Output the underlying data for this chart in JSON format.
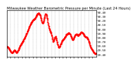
{
  "title": "Milwaukee Weather Barometric Pressure per Minute (Last 24 Hours)",
  "line_color": "#ff0000",
  "line_style": "--",
  "line_width": 0.6,
  "marker": ".",
  "marker_size": 1.2,
  "bg_color": "#ffffff",
  "plot_bg_color": "#ffffff",
  "grid_color": "#999999",
  "grid_style": "--",
  "grid_alpha": 0.8,
  "ylim": [
    29.35,
    30.45
  ],
  "ytick_values": [
    29.4,
    29.5,
    29.6,
    29.7,
    29.8,
    29.9,
    30.0,
    30.1,
    30.2,
    30.3,
    30.4
  ],
  "num_points": 1440,
  "title_fontsize": 3.8,
  "tick_fontsize": 3.0,
  "spine_color": "#000000",
  "control_points": [
    [
      0.0,
      29.58
    ],
    [
      0.03,
      29.52
    ],
    [
      0.06,
      29.45
    ],
    [
      0.09,
      29.5
    ],
    [
      0.11,
      29.45
    ],
    [
      0.13,
      29.52
    ],
    [
      0.16,
      29.65
    ],
    [
      0.2,
      29.8
    ],
    [
      0.24,
      30.0
    ],
    [
      0.28,
      30.18
    ],
    [
      0.32,
      30.28
    ],
    [
      0.36,
      30.38
    ],
    [
      0.38,
      30.28
    ],
    [
      0.4,
      30.15
    ],
    [
      0.42,
      30.26
    ],
    [
      0.44,
      30.36
    ],
    [
      0.46,
      30.16
    ],
    [
      0.48,
      29.98
    ],
    [
      0.5,
      29.88
    ],
    [
      0.52,
      29.72
    ],
    [
      0.54,
      29.82
    ],
    [
      0.56,
      29.72
    ],
    [
      0.58,
      29.58
    ],
    [
      0.61,
      29.68
    ],
    [
      0.64,
      29.78
    ],
    [
      0.67,
      29.88
    ],
    [
      0.7,
      29.9
    ],
    [
      0.72,
      29.83
    ],
    [
      0.74,
      29.76
    ],
    [
      0.76,
      29.84
    ],
    [
      0.78,
      29.88
    ],
    [
      0.8,
      29.86
    ],
    [
      0.83,
      29.93
    ],
    [
      0.86,
      29.88
    ],
    [
      0.88,
      29.82
    ],
    [
      0.9,
      29.8
    ],
    [
      0.92,
      29.7
    ],
    [
      0.94,
      29.58
    ],
    [
      0.96,
      29.5
    ],
    [
      0.98,
      29.44
    ],
    [
      1.0,
      29.42
    ]
  ]
}
